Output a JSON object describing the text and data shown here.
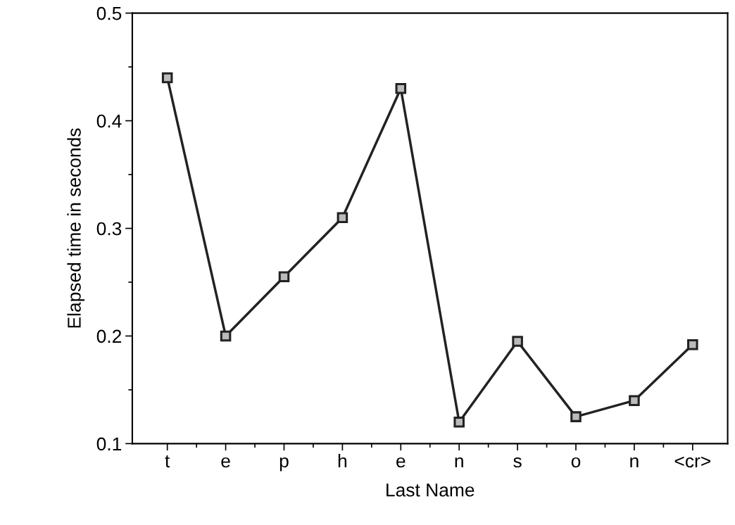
{
  "chart_data": {
    "type": "line",
    "xlabel": "Last Name",
    "ylabel": "Elapsed time in seconds",
    "categories": [
      "t",
      "e",
      "p",
      "h",
      "e",
      "n",
      "s",
      "o",
      "n",
      "<cr>"
    ],
    "series": [
      {
        "color": "#222222",
        "values": [
          0.44,
          0.2,
          0.255,
          0.31,
          0.43,
          0.12,
          0.195,
          0.125,
          0.14,
          0.192
        ]
      }
    ],
    "ylim": [
      0.1,
      0.5
    ],
    "yticks": [
      0.1,
      0.2,
      0.3,
      0.4,
      0.5
    ],
    "grid": false,
    "legend": false,
    "marker": "square",
    "line_style": "solid"
  }
}
